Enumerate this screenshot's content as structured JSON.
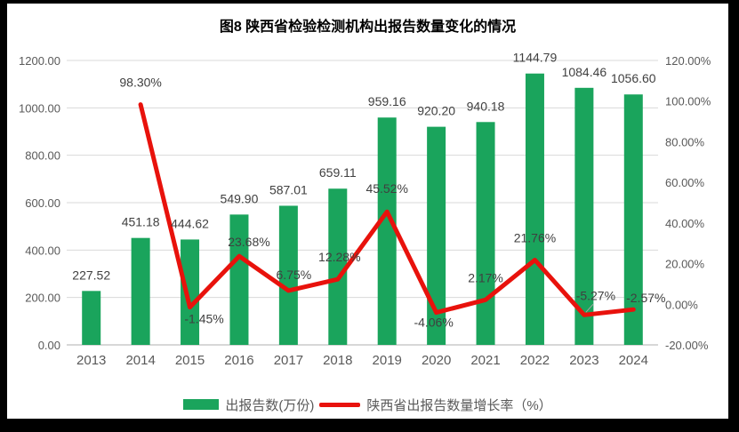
{
  "title": "图8  陕西省检验检测机构出报告数量变化的情况",
  "legend": {
    "bars_label": "出报告数(万份)",
    "line_label": "陕西省出报告数量增长率（%）"
  },
  "colors": {
    "bar": "#1aa45c",
    "line": "#e8120c",
    "grid": "#d9d9d9",
    "axis_line": "#bfbfbf",
    "axis_text": "#595959",
    "data_label": "#3f3f3f",
    "leader": "#a6a6a6"
  },
  "chart_data": {
    "type": "combo-bar-line",
    "title": "图8  陕西省检验检测机构出报告数量变化的情况",
    "categories": [
      "2013",
      "2014",
      "2015",
      "2016",
      "2017",
      "2018",
      "2019",
      "2020",
      "2021",
      "2022",
      "2023",
      "2024"
    ],
    "series": [
      {
        "name": "出报告数(万份)",
        "type": "bar",
        "axis": "left",
        "values": [
          227.52,
          451.18,
          444.62,
          549.9,
          587.01,
          659.11,
          959.16,
          920.2,
          940.18,
          1144.79,
          1084.46,
          1056.6
        ],
        "labels": [
          "227.52",
          "451.18",
          "444.62",
          "549.90",
          "587.01",
          "659.11",
          "959.16",
          "920.20",
          "940.18",
          "1144.79",
          "1084.46",
          "1056.60"
        ]
      },
      {
        "name": "陕西省出报告数量增长率（%）",
        "type": "line",
        "axis": "right",
        "values": [
          null,
          98.3,
          -1.45,
          23.68,
          6.75,
          12.28,
          45.52,
          -4.06,
          2.17,
          21.76,
          -5.27,
          -2.57
        ],
        "labels": [
          null,
          "98.30%",
          "-1.45%",
          "23.68%",
          "6.75%",
          "12.28%",
          "45.52%",
          "-4.06%",
          "2.17%",
          "21.76%",
          "-5.27%",
          "-2.57%"
        ]
      }
    ],
    "left_axis": {
      "min": 0,
      "max": 1200,
      "step": 200,
      "ticks": [
        "1200.00",
        "1000.00",
        "800.00",
        "600.00",
        "400.00",
        "200.00",
        "0.00"
      ]
    },
    "right_axis": {
      "min": -20,
      "max": 120,
      "step": 20,
      "ticks": [
        "120.00%",
        "100.00%",
        "80.00%",
        "60.00%",
        "40.00%",
        "20.00%",
        "0.00%",
        "-20.00%"
      ]
    },
    "grid": "horizontal gridlines from left axis",
    "legend_position": "bottom"
  }
}
